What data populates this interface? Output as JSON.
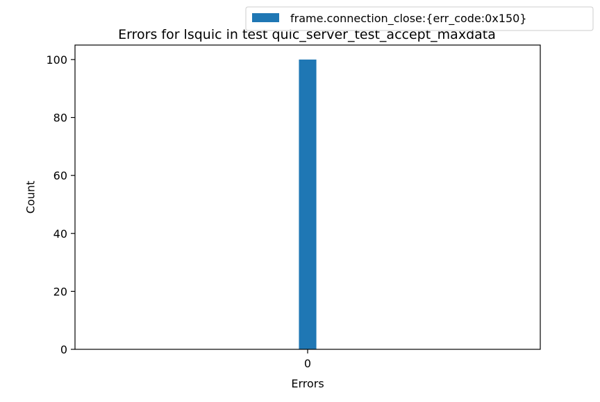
{
  "chart_data": {
    "type": "bar",
    "title": "Errors for lsquic in test quic_server_test_accept_maxdata",
    "xlabel": "Errors",
    "ylabel": "Count",
    "categories": [
      "0"
    ],
    "series": [
      {
        "name": "frame.connection_close:{err_code:0x150}",
        "values": [
          100
        ],
        "color": "#1f77b4"
      }
    ],
    "xlim": [
      -0.8,
      0.8
    ],
    "ylim": [
      0,
      105
    ],
    "yticks": [
      0,
      20,
      40,
      60,
      80,
      100
    ],
    "grid": false,
    "legend_position": "top-right"
  }
}
